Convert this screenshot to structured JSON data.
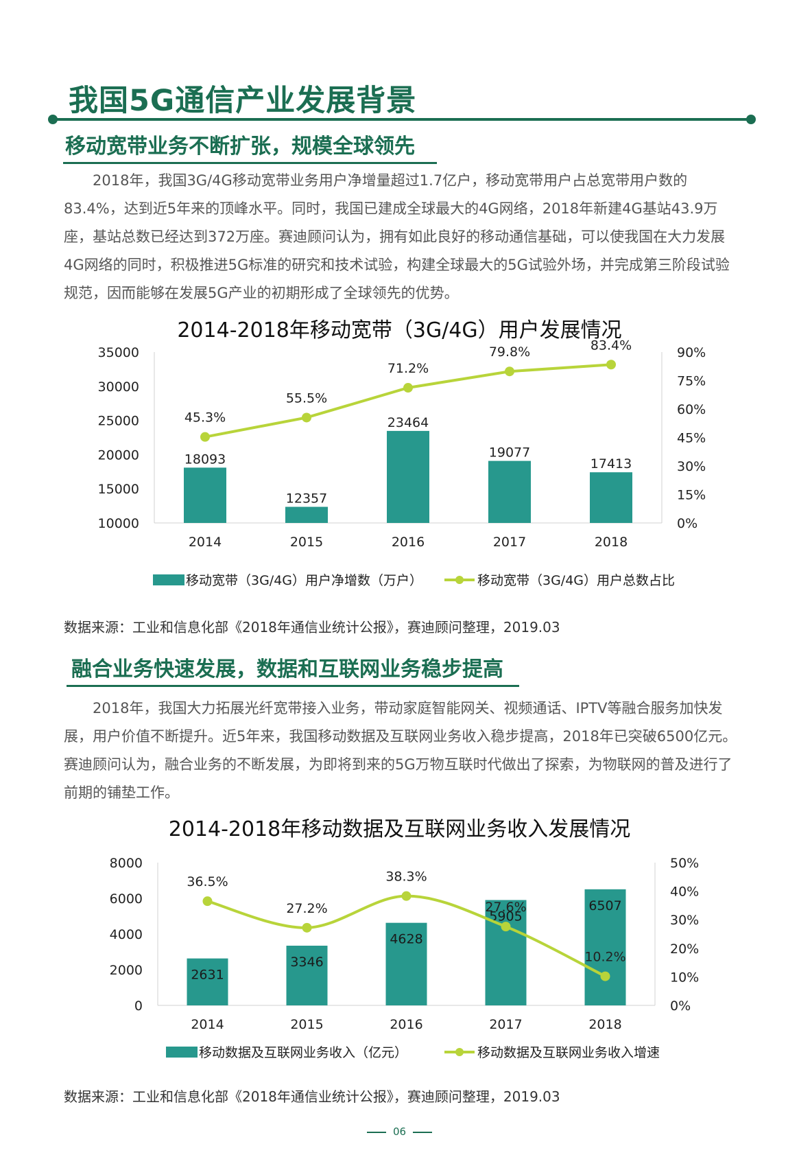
{
  "page": {
    "title": "我国5G通信产业发展背景",
    "page_number": "06",
    "colors": {
      "brand": "#1b6e52",
      "bar": "#27988d",
      "line": "#b8d43a"
    }
  },
  "section1": {
    "heading": "移动宽带业务不断扩张，规模全球领先",
    "paragraph": "2018年，我国3G/4G移动宽带业务用户净增量超过1.7亿户，移动宽带用户占总宽带用户数的83.4%，达到近5年来的顶峰水平。同时，我国已建成全球最大的4G网络，2018年新建4G基站43.9万座，基站总数已经达到372万座。赛迪顾问认为，拥有如此良好的移动通信基础，可以使我国在大力发展4G网络的同时，积极推进5G标准的研究和技术试验，构建全球最大的5G试验外场，并完成第三阶段试验规范，因而能够在发展5G产业的初期形成了全球领先的优势。",
    "source": "数据来源：工业和信息化部《2018年通信业统计公报》，赛迪顾问整理，2019.03"
  },
  "section2": {
    "heading": "融合业务快速发展，数据和互联网业务稳步提高",
    "paragraph": "2018年，我国大力拓展光纤宽带接入业务，带动家庭智能网关、视频通话、IPTV等融合服务加快发展，用户价值不断提升。近5年来，我国移动数据及互联网业务收入稳步提高，2018年已突破6500亿元。赛迪顾问认为，融合业务的不断发展，为即将到来的5G万物互联时代做出了探索，为物联网的普及进行了前期的铺垫工作。",
    "source": "数据来源：工业和信息化部《2018年通信业统计公报》，赛迪顾问整理，2019.03"
  },
  "chart_data": [
    {
      "type": "bar",
      "title": "2014-2018年移动宽带（3G/4G）用户发展情况",
      "categories": [
        "2014",
        "2015",
        "2016",
        "2017",
        "2018"
      ],
      "series": [
        {
          "name": "移动宽带（3G/4G）用户净增数（万户）",
          "type": "bar",
          "axis": "left",
          "values": [
            18093,
            12357,
            23464,
            19077,
            17413
          ],
          "labels": [
            "18093",
            "12357",
            "23464",
            "19077",
            "17413"
          ]
        },
        {
          "name": "移动宽带（3G/4G）用户总数占比",
          "type": "line",
          "axis": "right",
          "values": [
            45.3,
            55.5,
            71.2,
            79.8,
            83.4
          ],
          "labels": [
            "45.3%",
            "55.5%",
            "71.2%",
            "79.8%",
            "83.4%"
          ]
        }
      ],
      "ylim": [
        10000,
        35000
      ],
      "y_ticks": [
        "10000",
        "15000",
        "20000",
        "25000",
        "30000",
        "35000"
      ],
      "y2lim": [
        0,
        90
      ],
      "y2_ticks": [
        "0%",
        "15%",
        "30%",
        "45%",
        "60%",
        "75%",
        "90%"
      ],
      "legend": "bottom",
      "grid": false
    },
    {
      "type": "bar",
      "title": "2014-2018年移动数据及互联网业务收入发展情况",
      "categories": [
        "2014",
        "2015",
        "2016",
        "2017",
        "2018"
      ],
      "series": [
        {
          "name": "移动数据及互联网业务收入（亿元）",
          "type": "bar",
          "axis": "left",
          "values": [
            2631,
            3346,
            4628,
            5905,
            6507
          ],
          "labels": [
            "2631",
            "3346",
            "4628",
            "5905",
            "6507"
          ]
        },
        {
          "name": "移动数据及互联网业务收入增速",
          "type": "line",
          "axis": "right",
          "values": [
            36.5,
            27.2,
            38.3,
            27.6,
            10.2
          ],
          "labels": [
            "36.5%",
            "27.2%",
            "38.3%",
            "27.6%",
            "10.2%"
          ]
        }
      ],
      "ylim": [
        0,
        8000
      ],
      "y_ticks": [
        "0",
        "2000",
        "4000",
        "6000",
        "8000"
      ],
      "y2lim": [
        0,
        50
      ],
      "y2_ticks": [
        "0%",
        "10%",
        "20%",
        "30%",
        "40%",
        "50%"
      ],
      "legend": "bottom",
      "grid": false
    }
  ]
}
